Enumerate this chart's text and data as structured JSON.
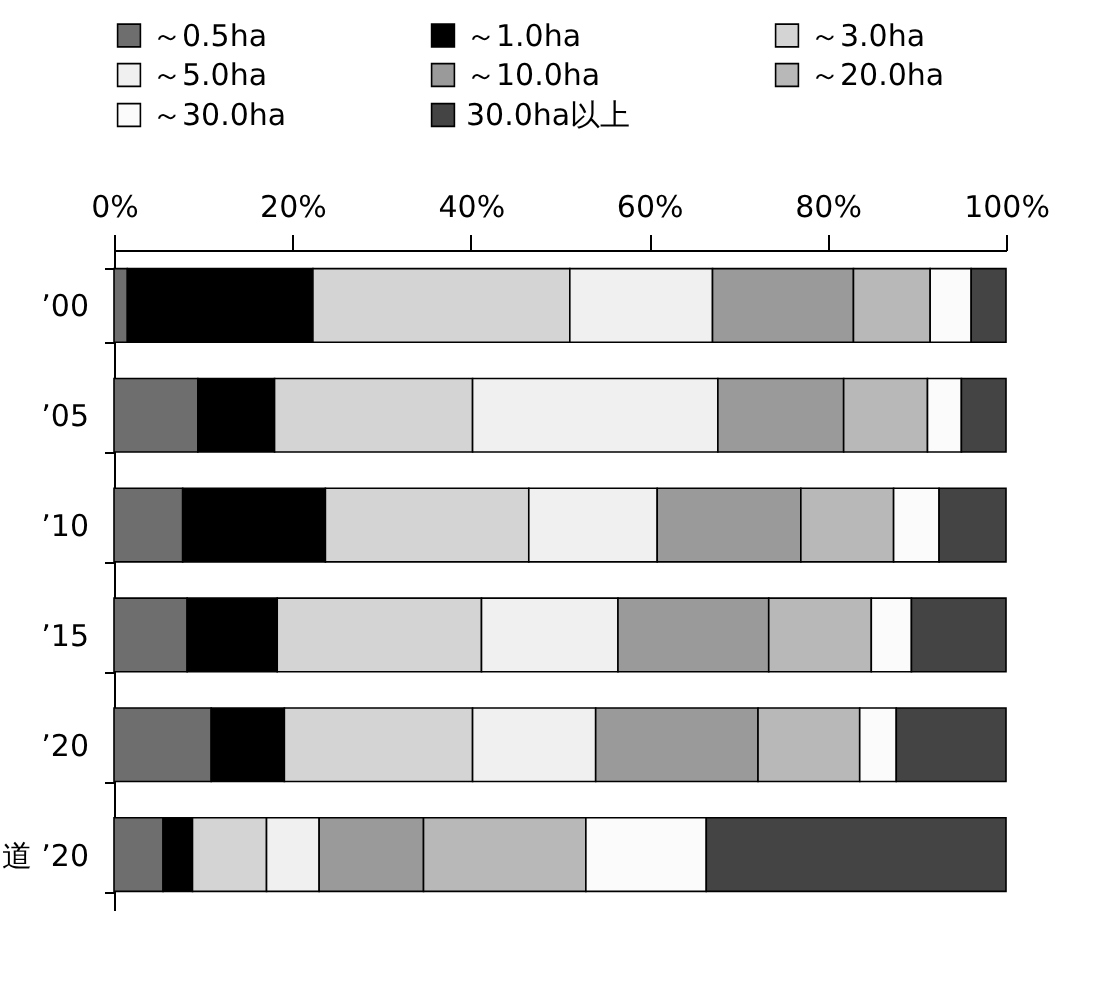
{
  "chart_data": {
    "type": "bar",
    "orientation": "horizontal",
    "stacked": true,
    "categories": [
      "’00",
      "’05",
      "’10",
      "’15",
      "’20",
      "道 ’20"
    ],
    "series": [
      {
        "name": "～0.5ha",
        "color": "#6e6e6e",
        "values": [
          1.5,
          9.4,
          7.7,
          8.2,
          10.9,
          5.5
        ]
      },
      {
        "name": "～1.0ha",
        "color": "#000000",
        "values": [
          20.8,
          8.6,
          16.0,
          10.1,
          8.2,
          3.3
        ]
      },
      {
        "name": "～3.0ha",
        "color": "#d4d4d4",
        "values": [
          28.8,
          22.2,
          22.8,
          22.9,
          21.1,
          8.3
        ]
      },
      {
        "name": "～5.0ha",
        "color": "#f0f0f0",
        "values": [
          16.0,
          27.5,
          14.4,
          15.3,
          13.8,
          5.9
        ]
      },
      {
        "name": "～10.0ha",
        "color": "#9a9a9a",
        "values": [
          15.8,
          14.1,
          16.1,
          16.9,
          18.2,
          11.7
        ]
      },
      {
        "name": "～20.0ha",
        "color": "#b8b8b8",
        "values": [
          8.6,
          9.4,
          10.4,
          11.5,
          11.4,
          18.2
        ]
      },
      {
        "name": "～30.0ha",
        "color": "#fbfbfb",
        "values": [
          4.6,
          3.8,
          5.1,
          4.5,
          4.1,
          13.5
        ]
      },
      {
        "name": "30.0ha以上",
        "color": "#444444",
        "values": [
          3.9,
          5.0,
          7.5,
          10.6,
          12.3,
          33.6
        ]
      }
    ],
    "xlim": [
      0,
      100
    ],
    "xticks": [
      {
        "value": 0,
        "label": "0%"
      },
      {
        "value": 20,
        "label": "20%"
      },
      {
        "value": 40,
        "label": "40%"
      },
      {
        "value": 60,
        "label": "60%"
      },
      {
        "value": 80,
        "label": "80%"
      },
      {
        "value": 100,
        "label": "100%"
      }
    ],
    "grid": false,
    "legend": "top"
  }
}
